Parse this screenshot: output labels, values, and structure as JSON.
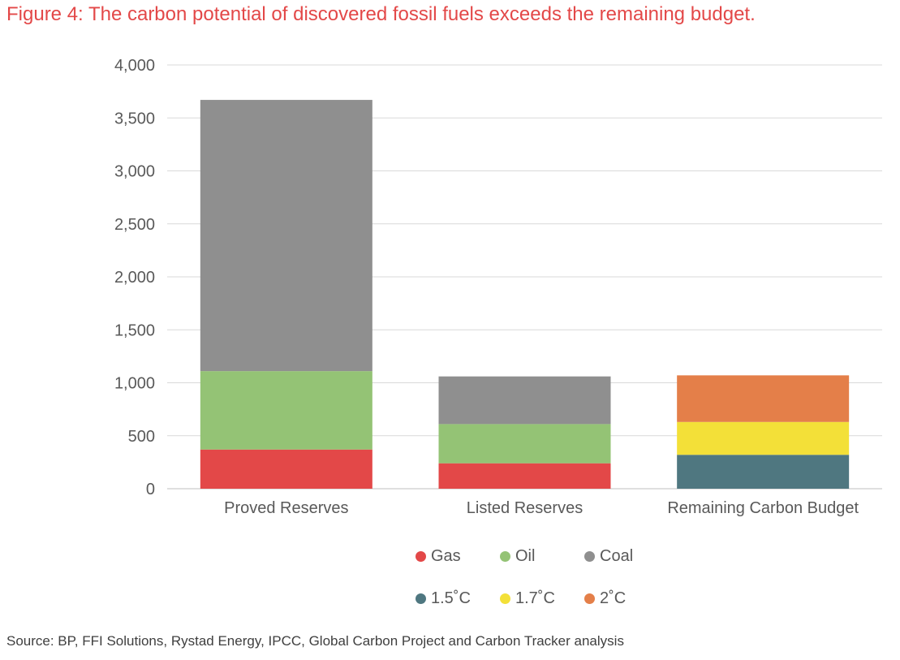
{
  "title": "Figure 4: The carbon potential of discovered fossil fuels exceeds the remaining budget.",
  "source": "Source: BP, FFI Solutions, Rystad Energy, IPCC, Global Carbon Project and Carbon Tracker analysis",
  "colors": {
    "title": "#e34848",
    "Gas": "#e34848",
    "Oil": "#94c375",
    "Coal": "#8f8f8f",
    "1.5˚C": "#4f7780",
    "1.7˚C": "#f3e038",
    "2˚C": "#e47f49",
    "grid": "#d9d9d9"
  },
  "chart_data": {
    "type": "bar",
    "stacked": true,
    "title": "",
    "xlabel": "",
    "ylabel": "",
    "ylim": [
      0,
      4000
    ],
    "yticks": [
      0,
      500,
      1000,
      1500,
      2000,
      2500,
      3000,
      3500,
      4000
    ],
    "ytick_labels": [
      "0",
      "500",
      "1,000",
      "1,500",
      "2,000",
      "2,500",
      "3,000",
      "3,500",
      "4,000"
    ],
    "grid": true,
    "legend_position": "bottom",
    "categories": [
      "Proved Reserves",
      "Listed Reserves",
      "Remaining Carbon Budget"
    ],
    "series": [
      {
        "name": "Gas",
        "values": [
          370,
          240,
          0
        ]
      },
      {
        "name": "Oil",
        "values": [
          740,
          370,
          0
        ]
      },
      {
        "name": "Coal",
        "values": [
          2560,
          450,
          0
        ]
      },
      {
        "name": "1.5˚C",
        "values": [
          0,
          0,
          320
        ]
      },
      {
        "name": "1.7˚C",
        "values": [
          0,
          0,
          310
        ]
      },
      {
        "name": "2˚C",
        "values": [
          0,
          0,
          440
        ]
      }
    ],
    "legend_rows": [
      [
        "Gas",
        "Oil",
        "Coal"
      ],
      [
        "1.5˚C",
        "1.7˚C",
        "2˚C"
      ]
    ]
  }
}
